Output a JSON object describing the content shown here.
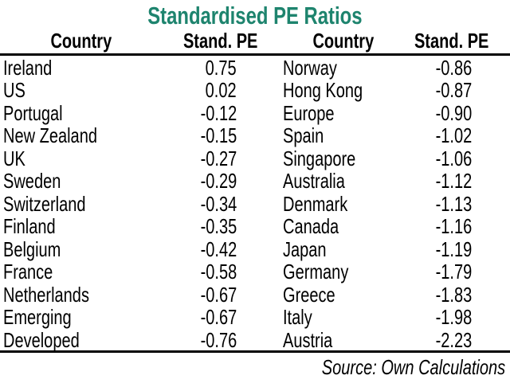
{
  "title": "Standardised PE Ratios",
  "source_note": "Source: Own Calculations",
  "colors": {
    "title_accent": "#1e846e",
    "text": "#000000",
    "rule": "#000000",
    "background": "#ffffff"
  },
  "chart_data": {
    "type": "table",
    "title": "Standardised PE Ratios",
    "columns": [
      "Country",
      "Stand. PE",
      "Country",
      "Stand. PE"
    ],
    "rows": [
      [
        "Ireland",
        "0.75",
        "Norway",
        "-0.86"
      ],
      [
        "US",
        "0.02",
        "Hong Kong",
        "-0.87"
      ],
      [
        "Portugal",
        "-0.12",
        "Europe",
        "-0.90"
      ],
      [
        "New Zealand",
        "-0.15",
        "Spain",
        "-1.02"
      ],
      [
        "UK",
        "-0.27",
        "Singapore",
        "-1.06"
      ],
      [
        "Sweden",
        "-0.29",
        "Australia",
        "-1.12"
      ],
      [
        "Switzerland",
        "-0.34",
        "Denmark",
        "-1.13"
      ],
      [
        "Finland",
        "-0.35",
        "Canada",
        "-1.16"
      ],
      [
        "Belgium",
        "-0.42",
        "Japan",
        "-1.19"
      ],
      [
        "France",
        "-0.58",
        "Germany",
        "-1.79"
      ],
      [
        "Netherlands",
        "-0.67",
        "Greece",
        "-1.83"
      ],
      [
        "Emerging",
        "-0.67",
        "Italy",
        "-1.98"
      ],
      [
        "Developed",
        "-0.76",
        "Austria",
        "-2.23"
      ]
    ],
    "source": "Source: Own Calculations",
    "layout": {
      "legend": "none",
      "grid": "horizontal rules below header row and below last data row",
      "value_alignment": "right",
      "country_alignment": "left"
    }
  }
}
